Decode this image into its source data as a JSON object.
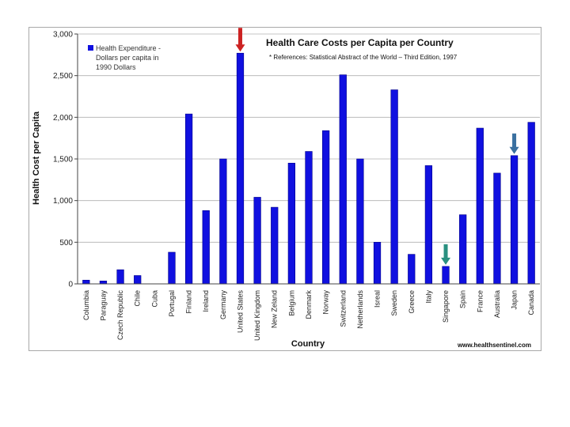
{
  "chart_data": {
    "type": "bar",
    "title": "Health Care Costs per Capita per Country",
    "reference": "* References: Statistical Abstract of the World – Third Edition, 1997",
    "xlabel": "Country",
    "ylabel": "Health Cost per Capita",
    "ylim": [
      0,
      3000
    ],
    "yticks": [
      "0",
      "500",
      "1,000",
      "1,500",
      "2,000",
      "2,500",
      "3,000"
    ],
    "legend": [
      "Health Expenditure -",
      "Dollars per capita in",
      "1990 Dollars"
    ],
    "legend_position": "top-left",
    "credit": "www.healthsentinel.com",
    "bar_color": "#1010e0",
    "highlight_arrows": [
      {
        "country": "United States",
        "color": "#cc2222"
      },
      {
        "country": "Singapore",
        "color": "#2a9080"
      },
      {
        "country": "Japan",
        "color": "#3a70a0"
      }
    ],
    "categories": [
      "Columbia",
      "Paraguay",
      "Czech Republic",
      "Chile",
      "Cuba",
      "Portugal",
      "Finland",
      "Ireland",
      "Germany",
      "United States",
      "United Kingdom",
      "New Zeland",
      "Belgium",
      "Denmark",
      "Norway",
      "Switzerland",
      "Netherlands",
      "Isreal",
      "Sweden",
      "Greece",
      "Italy",
      "Singapore",
      "Spain",
      "France",
      "Australia",
      "Japan",
      "Canada"
    ],
    "values": [
      45,
      35,
      170,
      100,
      0,
      380,
      2040,
      880,
      1500,
      2770,
      1040,
      920,
      1450,
      1590,
      1840,
      2510,
      1500,
      500,
      2330,
      355,
      1420,
      210,
      830,
      1870,
      1330,
      1540,
      1940
    ]
  }
}
